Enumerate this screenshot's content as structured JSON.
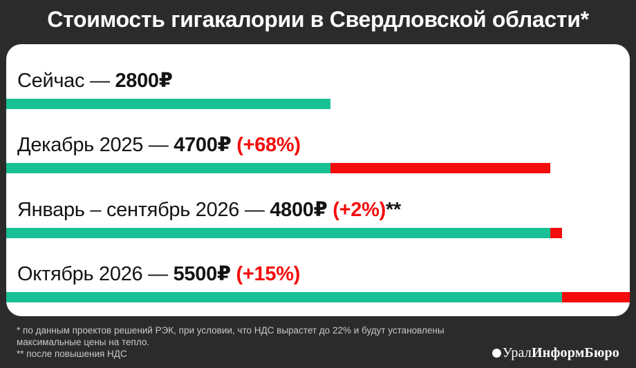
{
  "title": "Стоимость гигакалории в Свердловской области*",
  "colors": {
    "background": "#2b2b2b",
    "panel": "#ffffff",
    "teal": "#1ac095",
    "red": "#f40c0c",
    "footnote_text": "#c9c9c9",
    "label_text": "#141414"
  },
  "chart_data": {
    "type": "bar",
    "title": "Стоимость гигакалории в Свердловской области*",
    "unit": "₽ за гигакалорию",
    "orientation": "horizontal",
    "legend": "off",
    "grid": "off",
    "axis_labels": "none",
    "scale": {
      "reference_value": 2800,
      "reference_pct": 52
    },
    "rows": [
      {
        "label": "Сейчас —",
        "price": "2800₽",
        "change": "",
        "suffix": "",
        "value": 2800,
        "base_value": 2800,
        "increase_value": 0
      },
      {
        "label": "Декабрь 2025 —",
        "price": "4700₽",
        "change": "(+68%)",
        "suffix": "",
        "value": 4700,
        "base_value": 2800,
        "increase_value": 1900
      },
      {
        "label": "Январь – сентябрь 2026 —",
        "price": "4800₽",
        "change": "(+2%)",
        "suffix": "**",
        "value": 4800,
        "base_value": 4700,
        "increase_value": 100
      },
      {
        "label": "Октябрь 2026 —",
        "price": "5500₽",
        "change": "(+15%)",
        "suffix": "",
        "value": 5500,
        "base_value": 4800,
        "increase_value": 700
      }
    ]
  },
  "footnotes": [
    "* по данным проектов решений РЭК, при условии, что НДС вырастет до 22% и будут установлены максимальные цены на тепло.",
    "** после повышения НДС"
  ],
  "logo": {
    "regular": "Урал",
    "bold": "ИнформБюро"
  }
}
